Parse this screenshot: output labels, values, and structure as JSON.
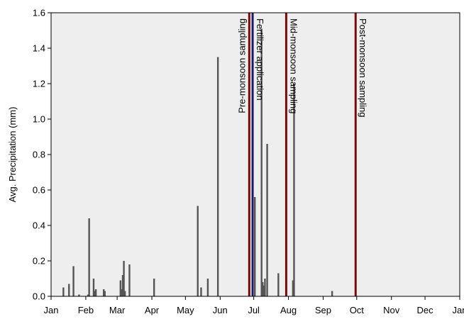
{
  "chart_data": {
    "type": "bar",
    "title": "",
    "xlabel": "",
    "ylabel": "Avg. Precipitation (mm)",
    "ylim": [
      0,
      1.6
    ],
    "yticks": [
      "0.0",
      "0.2",
      "0.4",
      "0.6",
      "0.8",
      "1.0",
      "1.2",
      "1.4",
      "1.6"
    ],
    "xlim_days": [
      0,
      365
    ],
    "xtick_labels": [
      "Jan",
      "Feb",
      "Mar",
      "Apr",
      "May",
      "Jun",
      "Jul",
      "Aug",
      "Sep",
      "Oct",
      "Nov",
      "Dec",
      "Jan"
    ],
    "grid": false,
    "plot_background": "#eeeeee",
    "bar_color": "#555555",
    "series": [
      {
        "x_day": [
          11,
          16,
          20,
          25,
          33,
          34,
          38,
          39,
          40,
          47,
          48,
          62,
          63,
          64,
          65,
          66,
          70,
          92,
          131,
          134,
          140,
          149,
          182,
          188,
          189,
          190,
          191,
          193,
          203,
          216,
          217,
          251,
          281
        ],
        "values": [
          0.05,
          0.07,
          0.17,
          0.01,
          0.01,
          0.44,
          0.1,
          0.03,
          0.04,
          0.04,
          0.03,
          0.09,
          0.04,
          0.12,
          0.2,
          0.03,
          0.18,
          0.1,
          0.51,
          0.05,
          0.1,
          1.35,
          0.56,
          1.51,
          0.08,
          0.06,
          0.1,
          0.86,
          0.13,
          0.09,
          1.2,
          0.03,
          0.0
        ]
      }
    ],
    "events": [
      {
        "label": "Pre-monsoon sampling",
        "day": 177,
        "color": "#7a0a0a"
      },
      {
        "label": "Fertilizer application",
        "day": 180,
        "color": "#1a1a66"
      },
      {
        "label": "Mid-monsoon sampling",
        "day": 210,
        "color": "#7a0a0a"
      },
      {
        "label": "Post-monsoon sampling",
        "day": 272,
        "color": "#7a0a0a"
      }
    ]
  }
}
